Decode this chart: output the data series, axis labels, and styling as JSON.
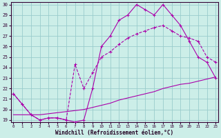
{
  "xlabel": "Windchill (Refroidissement éolien,°C)",
  "bg_color": "#cceee8",
  "line_color": "#aa00aa",
  "grid_color": "#99cccc",
  "xmin": 0,
  "xmax": 23,
  "ymin": 19,
  "ymax": 30,
  "yticks": [
    19,
    20,
    21,
    22,
    23,
    24,
    25,
    26,
    27,
    28,
    29,
    30
  ],
  "xticks": [
    0,
    1,
    2,
    3,
    4,
    5,
    6,
    7,
    8,
    9,
    10,
    11,
    12,
    13,
    14,
    15,
    16,
    17,
    18,
    19,
    20,
    21,
    22,
    23
  ],
  "line1_x": [
    0,
    1,
    2,
    3,
    4,
    5,
    6,
    7,
    8,
    9,
    10,
    11,
    12,
    13,
    14,
    15,
    16,
    17,
    18,
    19,
    20,
    21,
    22,
    23
  ],
  "line1_y": [
    21.5,
    20.5,
    19.5,
    19.0,
    19.2,
    19.2,
    19.0,
    18.8,
    19.0,
    22.0,
    26.0,
    27.0,
    28.5,
    29.0,
    30.0,
    29.5,
    29.0,
    30.0,
    29.0,
    28.0,
    26.5,
    25.0,
    24.5,
    23.0
  ],
  "line2_x": [
    0,
    1,
    2,
    3,
    4,
    5,
    6,
    7,
    8,
    9,
    10,
    11,
    12,
    13,
    14,
    15,
    16,
    17,
    18,
    19,
    20,
    21,
    22,
    23
  ],
  "line2_y": [
    21.5,
    20.5,
    19.5,
    19.0,
    19.2,
    19.2,
    19.0,
    24.3,
    22.0,
    23.5,
    25.0,
    25.5,
    26.2,
    26.8,
    27.2,
    27.5,
    27.8,
    28.0,
    27.5,
    27.0,
    26.8,
    26.5,
    25.0,
    24.5
  ],
  "line3_x": [
    0,
    1,
    2,
    3,
    4,
    5,
    6,
    7,
    8,
    9,
    10,
    11,
    12,
    13,
    14,
    15,
    16,
    17,
    18,
    19,
    20,
    21,
    22,
    23
  ],
  "line3_y": [
    19.5,
    19.5,
    19.5,
    19.5,
    19.6,
    19.7,
    19.8,
    19.9,
    20.0,
    20.2,
    20.4,
    20.6,
    20.9,
    21.1,
    21.3,
    21.5,
    21.7,
    22.0,
    22.2,
    22.4,
    22.5,
    22.7,
    22.9,
    23.1
  ]
}
